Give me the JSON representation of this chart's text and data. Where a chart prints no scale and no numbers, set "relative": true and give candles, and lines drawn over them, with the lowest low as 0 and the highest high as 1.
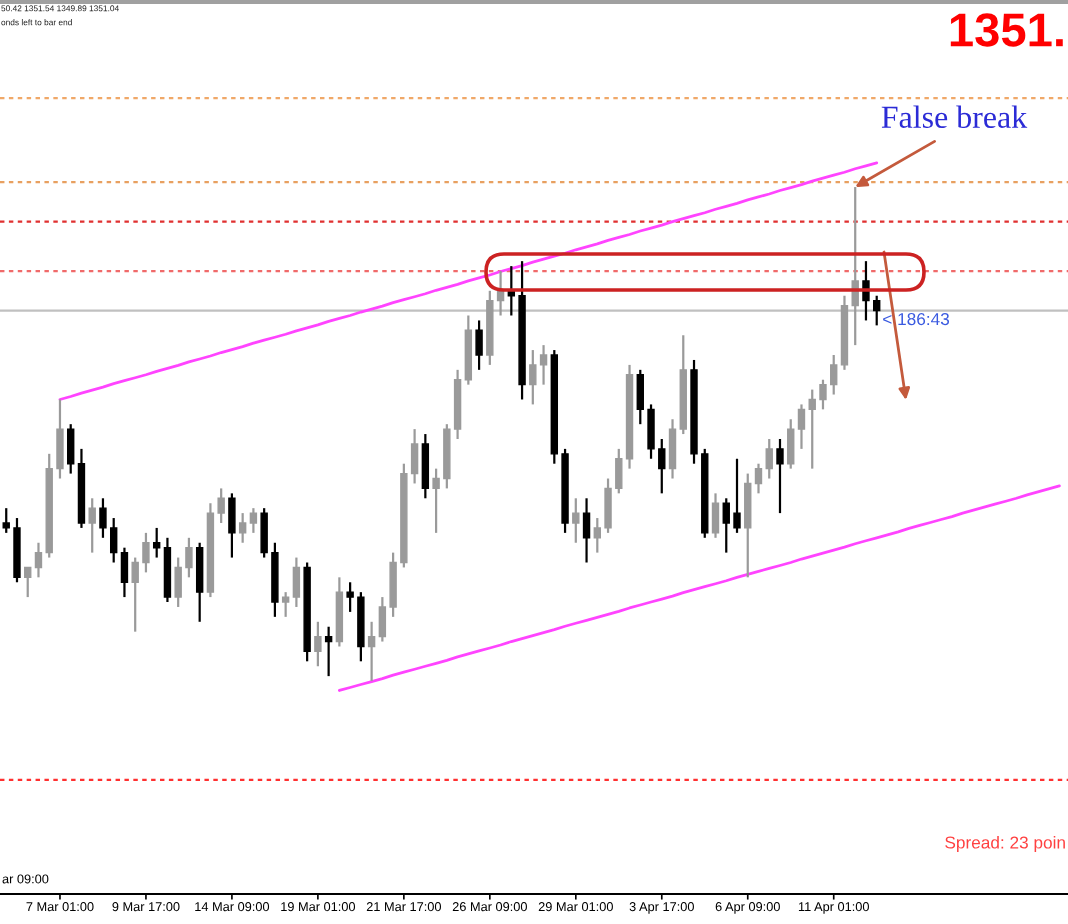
{
  "chart_data": {
    "type": "candlestick",
    "relative": true,
    "categories": [
      null,
      null,
      null,
      null,
      null,
      "7 Mar 01:00",
      null,
      null,
      null,
      null,
      null,
      null,
      null,
      "9 Mar 17:00",
      null,
      null,
      null,
      null,
      null,
      null,
      null,
      "14 Mar 09:00",
      null,
      null,
      null,
      null,
      null,
      null,
      null,
      "19 Mar 01:00",
      null,
      null,
      null,
      null,
      null,
      null,
      null,
      "21 Mar 17:00",
      null,
      null,
      null,
      null,
      null,
      null,
      null,
      "26 Mar 09:00",
      null,
      null,
      null,
      null,
      null,
      null,
      null,
      "29 Mar 01:00",
      null,
      null,
      null,
      null,
      null,
      null,
      null,
      "3 Apr 17:00",
      null,
      null,
      null,
      null,
      null,
      null,
      null,
      "6 Apr 09:00",
      null,
      null,
      null,
      null,
      null,
      null,
      null,
      "11 Apr 01:00",
      null,
      null,
      null,
      null,
      null,
      null,
      null,
      null,
      null,
      null,
      null,
      null,
      null,
      null,
      null,
      null,
      null,
      null,
      null,
      null,
      null
    ],
    "ohlc": [
      [
        0.32,
        0.35,
        0.3,
        0.31
      ],
      [
        0.31,
        0.33,
        0.2,
        0.21
      ],
      [
        0.21,
        0.23,
        0.17,
        0.23
      ],
      [
        0.23,
        0.28,
        0.21,
        0.26
      ],
      [
        0.26,
        0.46,
        0.25,
        0.43
      ],
      [
        0.43,
        0.57,
        0.41,
        0.51
      ],
      [
        0.51,
        0.52,
        0.42,
        0.44
      ],
      [
        0.44,
        0.47,
        0.31,
        0.32
      ],
      [
        0.32,
        0.37,
        0.26,
        0.35
      ],
      [
        0.35,
        0.37,
        0.29,
        0.31
      ],
      [
        0.31,
        0.33,
        0.24,
        0.26
      ],
      [
        0.26,
        0.27,
        0.17,
        0.2
      ],
      [
        0.2,
        0.25,
        0.1,
        0.24
      ],
      [
        0.24,
        0.3,
        0.22,
        0.28
      ],
      [
        0.28,
        0.31,
        0.25,
        0.27
      ],
      [
        0.27,
        0.29,
        0.16,
        0.17
      ],
      [
        0.17,
        0.25,
        0.15,
        0.23
      ],
      [
        0.23,
        0.29,
        0.21,
        0.27
      ],
      [
        0.27,
        0.28,
        0.12,
        0.18
      ],
      [
        0.18,
        0.36,
        0.17,
        0.34
      ],
      [
        0.34,
        0.39,
        0.32,
        0.37
      ],
      [
        0.37,
        0.38,
        0.25,
        0.3
      ],
      [
        0.3,
        0.34,
        0.28,
        0.32
      ],
      [
        0.32,
        0.35,
        0.3,
        0.34
      ],
      [
        0.34,
        0.35,
        0.25,
        0.26
      ],
      [
        0.26,
        0.28,
        0.13,
        0.16
      ],
      [
        0.16,
        0.18,
        0.13,
        0.17
      ],
      [
        0.17,
        0.25,
        0.15,
        0.23
      ],
      [
        0.23,
        0.24,
        0.04,
        0.06
      ],
      [
        0.06,
        0.12,
        0.03,
        0.09
      ],
      [
        0.09,
        0.11,
        0.01,
        0.08
      ],
      [
        0.08,
        0.21,
        0.07,
        0.18
      ],
      [
        0.18,
        0.2,
        0.14,
        0.17
      ],
      [
        0.17,
        0.18,
        0.04,
        0.07
      ],
      [
        0.07,
        0.12,
        0,
        0.09
      ],
      [
        0.09,
        0.17,
        0.08,
        0.15
      ],
      [
        0.15,
        0.26,
        0.13,
        0.24
      ],
      [
        0.24,
        0.44,
        0.23,
        0.42
      ],
      [
        0.42,
        0.51,
        0.4,
        0.48
      ],
      [
        0.48,
        0.5,
        0.37,
        0.39
      ],
      [
        0.39,
        0.43,
        0.3,
        0.41
      ],
      [
        0.41,
        0.52,
        0.39,
        0.51
      ],
      [
        0.51,
        0.63,
        0.49,
        0.61
      ],
      [
        0.61,
        0.74,
        0.6,
        0.71
      ],
      [
        0.71,
        0.73,
        0.63,
        0.66
      ],
      [
        0.66,
        0.79,
        0.64,
        0.77
      ],
      [
        0.77,
        0.83,
        0.74,
        0.79
      ],
      [
        0.79,
        0.84,
        0.74,
        0.78
      ],
      [
        0.78,
        0.85,
        0.57,
        0.6
      ],
      [
        0.6,
        0.67,
        0.56,
        0.64
      ],
      [
        0.64,
        0.68,
        0.6,
        0.66
      ],
      [
        0.66,
        0.67,
        0.44,
        0.46
      ],
      [
        0.46,
        0.47,
        0.3,
        0.32
      ],
      [
        0.32,
        0.37,
        0.28,
        0.34
      ],
      [
        0.34,
        0.37,
        0.24,
        0.29
      ],
      [
        0.29,
        0.33,
        0.26,
        0.31
      ],
      [
        0.31,
        0.41,
        0.3,
        0.39
      ],
      [
        0.39,
        0.47,
        0.38,
        0.45
      ],
      [
        0.45,
        0.64,
        0.43,
        0.62
      ],
      [
        0.62,
        0.63,
        0.52,
        0.55
      ],
      [
        0.55,
        0.56,
        0.45,
        0.47
      ],
      [
        0.47,
        0.49,
        0.38,
        0.43
      ],
      [
        0.43,
        0.53,
        0.41,
        0.51
      ],
      [
        0.51,
        0.7,
        0.5,
        0.63
      ],
      [
        0.63,
        0.65,
        0.44,
        0.46
      ],
      [
        0.46,
        0.47,
        0.29,
        0.3
      ],
      [
        0.3,
        0.38,
        0.29,
        0.36
      ],
      [
        0.36,
        0.37,
        0.26,
        0.32
      ],
      [
        0.34,
        0.45,
        0.3,
        0.31
      ],
      [
        0.31,
        0.42,
        0.21,
        0.4
      ],
      [
        0.4,
        0.44,
        0.38,
        0.43
      ],
      [
        0.43,
        0.49,
        0.41,
        0.47
      ],
      [
        0.47,
        0.49,
        0.34,
        0.44
      ],
      [
        0.44,
        0.53,
        0.43,
        0.51
      ],
      [
        0.51,
        0.56,
        0.47,
        0.55
      ],
      [
        0.55,
        0.59,
        0.43,
        0.57
      ],
      [
        0.57,
        0.61,
        0.55,
        0.6
      ],
      [
        0.6,
        0.66,
        0.58,
        0.64
      ],
      [
        0.64,
        0.78,
        0.63,
        0.76
      ],
      [
        0.76,
        1,
        0.68,
        0.81
      ],
      [
        0.81,
        0.85,
        0.73,
        0.77
      ],
      [
        0.77,
        0.78,
        0.72,
        0.75
      ],
      null,
      null,
      null,
      null,
      null,
      null,
      null,
      null,
      null,
      null,
      null,
      null,
      null,
      null,
      null,
      null,
      null
    ],
    "colors": [
      "#000000",
      "#000000",
      "#9a9a9a",
      "#9a9a9a",
      "#9a9a9a",
      "#9a9a9a",
      "#000000",
      "#000000",
      "#9a9a9a",
      "#000000",
      "#000000",
      "#000000",
      "#9a9a9a",
      "#9a9a9a",
      "#000000",
      "#000000",
      "#9a9a9a",
      "#9a9a9a",
      "#000000",
      "#9a9a9a",
      "#9a9a9a",
      "#000000",
      "#9a9a9a",
      "#9a9a9a",
      "#000000",
      "#000000",
      "#9a9a9a",
      "#9a9a9a",
      "#000000",
      "#9a9a9a",
      "#000000",
      "#9a9a9a",
      "#000000",
      "#000000",
      "#9a9a9a",
      "#9a9a9a",
      "#9a9a9a",
      "#9a9a9a",
      "#9a9a9a",
      "#000000",
      "#9a9a9a",
      "#9a9a9a",
      "#9a9a9a",
      "#9a9a9a",
      "#000000",
      "#9a9a9a",
      "#9a9a9a",
      "#000000",
      "#000000",
      "#9a9a9a",
      "#9a9a9a",
      "#000000",
      "#000000",
      "#9a9a9a",
      "#000000",
      "#9a9a9a",
      "#9a9a9a",
      "#9a9a9a",
      "#9a9a9a",
      "#000000",
      "#000000",
      "#000000",
      "#9a9a9a",
      "#9a9a9a",
      "#000000",
      "#000000",
      "#9a9a9a",
      "#000000",
      "#000000",
      "#9a9a9a",
      "#9a9a9a",
      "#9a9a9a",
      "#000000",
      "#9a9a9a",
      "#9a9a9a",
      "#9a9a9a",
      "#9a9a9a",
      "#9a9a9a",
      "#9a9a9a",
      "#9a9a9a",
      "#000000",
      "#000000",
      null,
      null,
      null,
      null,
      null,
      null,
      null,
      null,
      null,
      null,
      null,
      null,
      null,
      null,
      null,
      null,
      null
    ],
    "series": [
      {
        "type": "line",
        "color": "#ff44ff",
        "values": [
          null,
          null,
          null,
          null,
          null,
          0.57,
          0.576,
          0.583,
          0.589,
          0.595,
          0.602,
          0.608,
          0.614,
          0.62,
          0.627,
          0.633,
          0.639,
          0.646,
          0.652,
          0.658,
          0.665,
          0.671,
          0.677,
          0.684,
          0.69,
          0.696,
          0.702,
          0.709,
          0.715,
          0.721,
          0.728,
          0.734,
          0.74,
          0.747,
          0.753,
          0.759,
          0.766,
          0.772,
          0.778,
          0.784,
          0.791,
          0.797,
          0.803,
          0.81,
          0.816,
          0.822,
          0.829,
          0.835,
          0.841,
          0.848,
          0.854,
          0.86,
          0.866,
          0.873,
          0.879,
          0.885,
          0.892,
          0.898,
          0.904,
          0.911,
          0.917,
          0.923,
          0.93,
          0.936,
          0.942,
          0.948,
          0.955,
          0.961,
          0.967,
          0.974,
          0.98,
          0.986,
          0.993,
          0.999,
          1.005,
          1.012,
          1.018,
          1.024,
          1.03,
          1.037,
          1.043,
          1.049,
          null,
          null,
          null,
          null,
          null,
          null,
          null,
          null,
          null,
          null,
          null,
          null,
          null,
          null,
          null,
          null,
          null
        ]
      },
      {
        "type": "line",
        "color": "#ff44ff",
        "values": [
          null,
          null,
          null,
          null,
          null,
          null,
          null,
          null,
          null,
          null,
          null,
          null,
          null,
          null,
          null,
          null,
          null,
          null,
          null,
          null,
          null,
          null,
          null,
          null,
          null,
          null,
          null,
          null,
          null,
          null,
          null,
          -0.019,
          -0.013,
          -0.007,
          -0.001,
          0.005,
          0.012,
          0.018,
          0.024,
          0.03,
          0.036,
          0.042,
          0.049,
          0.055,
          0.061,
          0.067,
          0.073,
          0.08,
          0.086,
          0.092,
          0.098,
          0.104,
          0.111,
          0.117,
          0.123,
          0.129,
          0.135,
          0.141,
          0.148,
          0.154,
          0.16,
          0.166,
          0.172,
          0.179,
          0.185,
          0.191,
          0.197,
          0.203,
          0.21,
          0.216,
          0.222,
          0.228,
          0.234,
          0.24,
          0.247,
          0.253,
          0.259,
          0.265,
          0.271,
          0.278,
          0.284,
          0.29,
          0.296,
          0.302,
          0.309,
          0.315,
          0.321,
          0.327,
          0.333,
          0.34,
          0.346,
          0.352,
          0.358,
          0.364,
          0.37,
          0.377,
          0.383,
          0.389,
          0.395
        ]
      }
    ],
    "ref_lines": [
      {
        "axis": "y",
        "value": 1.18,
        "color": "#f0a868",
        "line_style": "dotted"
      },
      {
        "axis": "y",
        "value": 1.01,
        "color": "#e8a060",
        "line_style": "dotted"
      },
      {
        "axis": "y",
        "value": 0.93,
        "color": "#e03030",
        "line_style": "dotted"
      },
      {
        "axis": "y",
        "value": 0.83,
        "color": "#f06a6a",
        "line_style": "dotted"
      },
      {
        "axis": "y",
        "value": 0.75,
        "color": "#c0c0c0",
        "line_style": "solid"
      },
      {
        "axis": "y",
        "value": -0.2,
        "color": "#ff3030",
        "line_style": "dotted"
      }
    ],
    "annotations": [
      "50.42 1351.54 1349.89 1351.04",
      "onds left to bar end",
      "1351.",
      {
        "text": "False break",
        "y": 1
      },
      "< 186:43",
      "Spread: 23 poin",
      "ar 09:00"
    ]
  }
}
